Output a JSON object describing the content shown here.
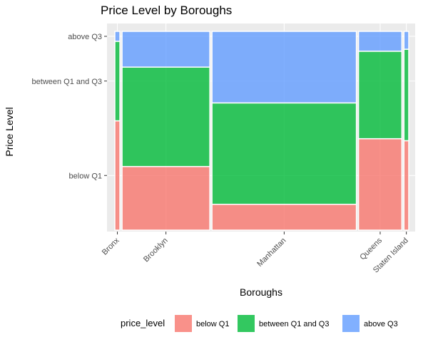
{
  "chart_data": {
    "type": "mosaic",
    "title": "Price Level by Boroughs",
    "xlabel": "Boroughs",
    "ylabel": "Price Level",
    "categories": [
      "Bronx",
      "Brooklyn",
      "Manhattan",
      "Queens",
      "Staten Island"
    ],
    "widths": [
      0.035,
      0.608,
      1.0,
      0.3,
      0.033
    ],
    "levels": [
      "below Q1",
      "between Q1 and Q3",
      "above Q3"
    ],
    "series": [
      {
        "name": "below Q1",
        "color": "#F8766D",
        "values": [
          0.55,
          0.32,
          0.13,
          0.46,
          0.45
        ]
      },
      {
        "name": "between Q1 and Q3",
        "color": "#00BA38",
        "values": [
          0.4,
          0.5,
          0.51,
          0.44,
          0.46
        ]
      },
      {
        "name": "above Q3",
        "color": "#619CFF",
        "values": [
          0.05,
          0.18,
          0.36,
          0.1,
          0.09
        ]
      }
    ],
    "y_tick_labels": [
      "below Q1",
      "between Q1 and Q3",
      "above Q3"
    ],
    "legend": {
      "title": "price_level",
      "placement": "bottom"
    },
    "grid": true
  }
}
